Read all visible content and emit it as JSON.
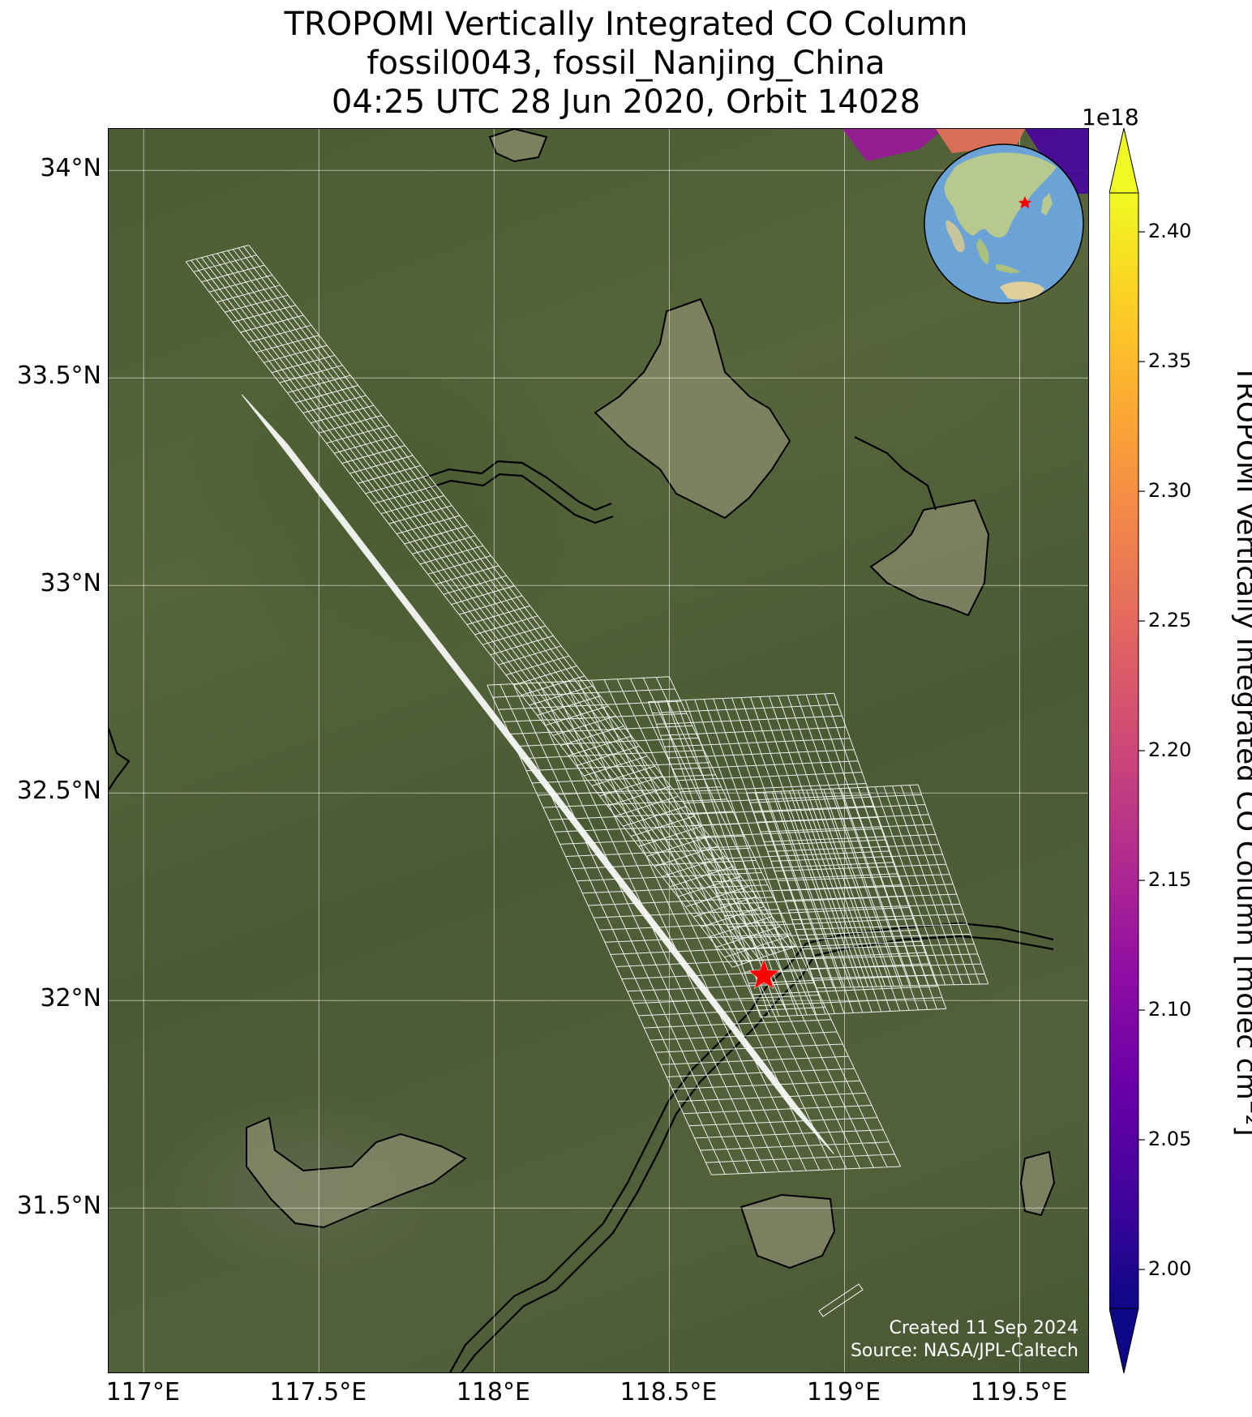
{
  "title": {
    "line1": "TROPOMI Vertically Integrated CO Column",
    "line2": "fossil0043, fossil_Nanjing_China",
    "line3": "04:25 UTC 28 Jun 2020, Orbit 14028"
  },
  "map": {
    "lon_range": [
      116.9,
      119.7
    ],
    "lat_range": [
      31.1,
      34.1
    ],
    "lat_ticks": [
      {
        "value": 34.0,
        "label": "34°N"
      },
      {
        "value": 33.5,
        "label": "33.5°N"
      },
      {
        "value": 33.0,
        "label": "33°N"
      },
      {
        "value": 32.5,
        "label": "32.5°N"
      },
      {
        "value": 32.0,
        "label": "32°N"
      },
      {
        "value": 31.5,
        "label": "31.5°N"
      }
    ],
    "lon_ticks": [
      {
        "value": 117.0,
        "label": "117°E"
      },
      {
        "value": 117.5,
        "label": "117.5°E"
      },
      {
        "value": 118.0,
        "label": "118°E"
      },
      {
        "value": 118.5,
        "label": "118.5°E"
      },
      {
        "value": 119.0,
        "label": "119°E"
      },
      {
        "value": 119.5,
        "label": "119.5°E"
      }
    ],
    "site": {
      "name": "fossil_Nanjing_China",
      "lon": 118.77,
      "lat": 32.06,
      "marker": "red-star",
      "color": "#ff0000"
    },
    "swaths": [
      {
        "corners": [
          [
            117.12,
            33.78
          ],
          [
            117.3,
            33.82
          ],
          [
            118.86,
            32.13
          ],
          [
            118.68,
            32.08
          ]
        ],
        "rows": 70,
        "cols": 12
      },
      {
        "corners": [
          [
            117.28,
            33.46
          ],
          [
            117.41,
            33.34
          ],
          [
            118.97,
            31.63
          ],
          [
            118.84,
            31.75
          ]
        ],
        "rows": 70,
        "cols": 9
      },
      {
        "corners": [
          [
            118.44,
            32.72
          ],
          [
            118.97,
            32.74
          ],
          [
            119.29,
            31.98
          ],
          [
            118.76,
            31.96
          ]
        ],
        "rows": 28,
        "cols": 20
      },
      {
        "corners": [
          [
            118.72,
            32.5
          ],
          [
            119.21,
            32.52
          ],
          [
            119.41,
            32.04
          ],
          [
            118.92,
            32.03
          ]
        ],
        "rows": 20,
        "cols": 20
      },
      {
        "corners": [
          [
            117.98,
            32.76
          ],
          [
            118.5,
            32.78
          ],
          [
            119.16,
            31.6
          ],
          [
            118.62,
            31.58
          ]
        ],
        "rows": 40,
        "cols": 14
      }
    ],
    "credit_created": "Created 11 Sep 2024",
    "credit_source": "Source: NASA/JPL-Caltech"
  },
  "colorbar": {
    "exponent_label": "1e18",
    "label": "TROPOMI Vertically Integrated CO Column [molec cm⁻²]",
    "colormap": "plasma",
    "vmin": 1.985,
    "vmax": 2.415,
    "extend": "both",
    "ticks": [
      "2.00",
      "2.05",
      "2.10",
      "2.15",
      "2.20",
      "2.25",
      "2.30",
      "2.35",
      "2.40"
    ],
    "colors": [
      "#0d0887",
      "#41049d",
      "#6a00a8",
      "#8f0da4",
      "#b12a90",
      "#cc4778",
      "#e16462",
      "#f2844b",
      "#fca636",
      "#fcce25",
      "#f0f921"
    ]
  },
  "inset": {
    "type": "globe-locator",
    "marker": "red-star",
    "ocean_color": "#6ba3d6",
    "land_color": "#b7c98e"
  }
}
